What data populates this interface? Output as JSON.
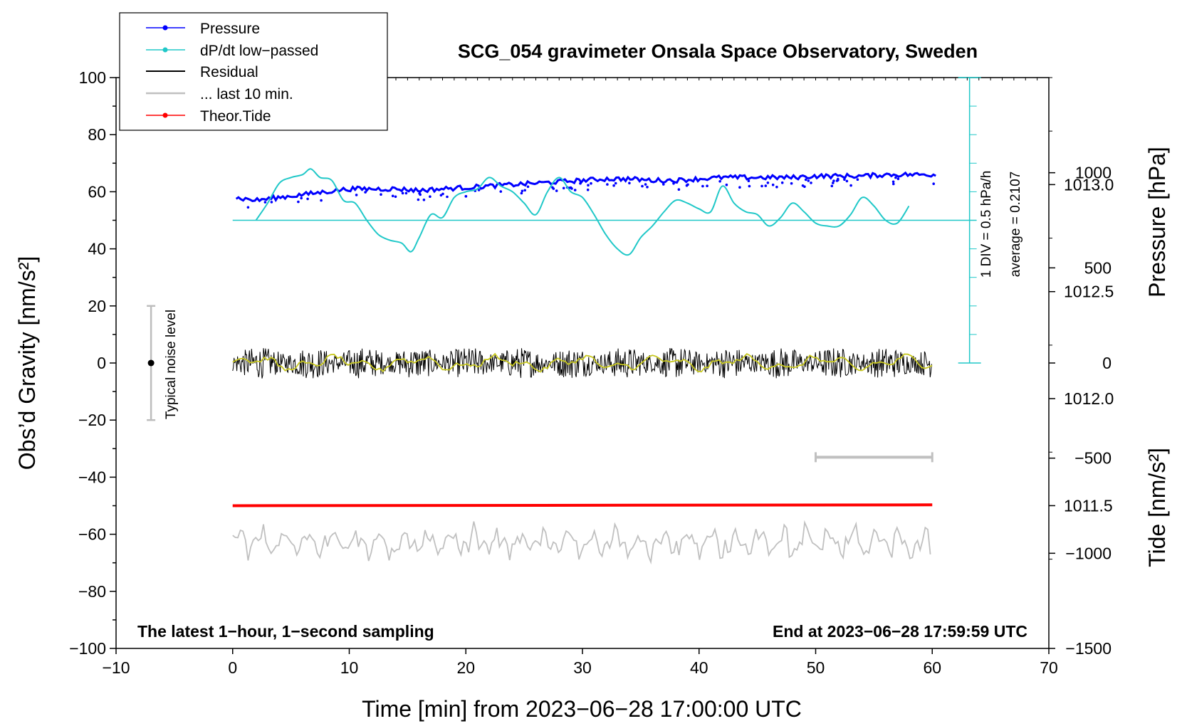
{
  "chart_data": {
    "type": "line",
    "title": "SCG_054 gravimeter Onsala Space Observatory, Sweden",
    "xlabel": "Time [min] from 2023−06−28 17:00:00 UTC",
    "ylabel_left": "Obs’d Gravity [nm/s²]",
    "ylabel_right_pressure": "Pressure [hPa]",
    "ylabel_right_tide": "Tide [nm/s²]",
    "xlim": [
      -10,
      70
    ],
    "ylim_left": [
      -100,
      100
    ],
    "pressure_axis_range": [
      1010.833,
      1013.5
    ],
    "tide_axis_range": [
      -1500,
      1500
    ],
    "x_ticks": [
      "−10",
      "0",
      "10",
      "20",
      "30",
      "40",
      "50",
      "60",
      "70"
    ],
    "y_ticks_left": [
      "−100",
      "−80",
      "−60",
      "−40",
      "−20",
      "0",
      "20",
      "40",
      "60",
      "80",
      "100"
    ],
    "pressure_ticks": [
      "1011.5",
      "1012.0",
      "1012.5",
      "1013.0"
    ],
    "tide_ticks": [
      "−1500",
      "−1000",
      "−500",
      "0",
      "500",
      "1000"
    ],
    "legend": [
      {
        "label": "Pressure",
        "color": "#0000ff",
        "style": "line-dots"
      },
      {
        "label": "dP/dt low−passed",
        "color": "#20c8c8",
        "style": "line-dots"
      },
      {
        "label": "Residual",
        "color": "#000000",
        "style": "line"
      },
      {
        "label": "... last 10 min.",
        "color": "#c0c0c0",
        "style": "line"
      },
      {
        "label": "Theor.Tide",
        "color": "#ff0000",
        "style": "line-dots"
      }
    ],
    "annotations": {
      "latest": "The latest 1−hour, 1−second sampling",
      "end": "End at 2023−06−28 17:59:59 UTC",
      "noise": "Typical noise level",
      "div": "1 DIV = 0.5 hPa/h",
      "average": "average = 0.2107"
    },
    "noise_bar": {
      "x": -7,
      "y_center": 0,
      "y_range": [
        -20,
        20
      ]
    },
    "last_10min_bar": {
      "x": [
        50,
        60
      ],
      "y": -33
    },
    "dpdt_baseline_y": 50,
    "series": [
      {
        "name": "Pressure",
        "color": "#0000ff",
        "x": [
          0,
          2,
          4,
          6,
          8,
          10,
          12,
          14,
          16,
          18,
          20,
          22,
          24,
          26,
          28,
          30,
          32,
          34,
          36,
          38,
          40,
          42,
          44,
          46,
          48,
          50,
          52,
          54,
          56,
          58,
          60
        ],
        "y": [
          58,
          57,
          58,
          59,
          60,
          61,
          61,
          61,
          60.5,
          61,
          61.5,
          62,
          62.5,
          63,
          63.5,
          64,
          64.5,
          64.5,
          64,
          64,
          64.5,
          65,
          65,
          65,
          65,
          65.5,
          65.5,
          65.5,
          66,
          66,
          66
        ]
      },
      {
        "name": "dP/dt low-passed",
        "color": "#20c8c8",
        "x": [
          2,
          3,
          4,
          5,
          6,
          6.7,
          7.5,
          8.5,
          9.5,
          10.5,
          11.5,
          12.5,
          13.5,
          14.5,
          15.3,
          16,
          17,
          18,
          19,
          20,
          21,
          22,
          23,
          24,
          25,
          26,
          27,
          28,
          29,
          30,
          31,
          32,
          33,
          34,
          35,
          36,
          37,
          38,
          39,
          40,
          41,
          42,
          43,
          44,
          45,
          46,
          47,
          48,
          49,
          50,
          51,
          52,
          53,
          54,
          55,
          56,
          57,
          58
        ],
        "y": [
          50,
          56,
          63,
          65,
          66,
          68,
          65,
          64,
          57,
          56,
          50,
          45,
          43,
          42,
          39,
          44,
          52,
          51,
          58,
          60,
          61,
          65,
          62,
          60,
          56,
          52,
          60,
          65,
          60,
          58,
          52,
          45,
          40,
          38,
          44,
          48,
          53,
          57,
          56,
          54,
          53,
          62,
          56,
          53,
          52,
          48,
          51,
          56,
          53,
          49,
          48,
          48,
          52,
          58,
          55,
          50,
          49,
          55
        ]
      },
      {
        "name": "Residual",
        "color": "#000000",
        "x": [
          0,
          60
        ],
        "y": [
          0,
          0
        ],
        "noise_amplitude": 5
      },
      {
        "name": "... last 10 min.",
        "color": "#c0c0c0",
        "x": [
          0,
          60
        ],
        "y": [
          -63,
          -63
        ],
        "noise_amplitude": 6
      },
      {
        "name": "Theor.Tide",
        "color": "#ff0000",
        "x": [
          0,
          60
        ],
        "y": [
          -50,
          -49.7
        ]
      }
    ]
  }
}
